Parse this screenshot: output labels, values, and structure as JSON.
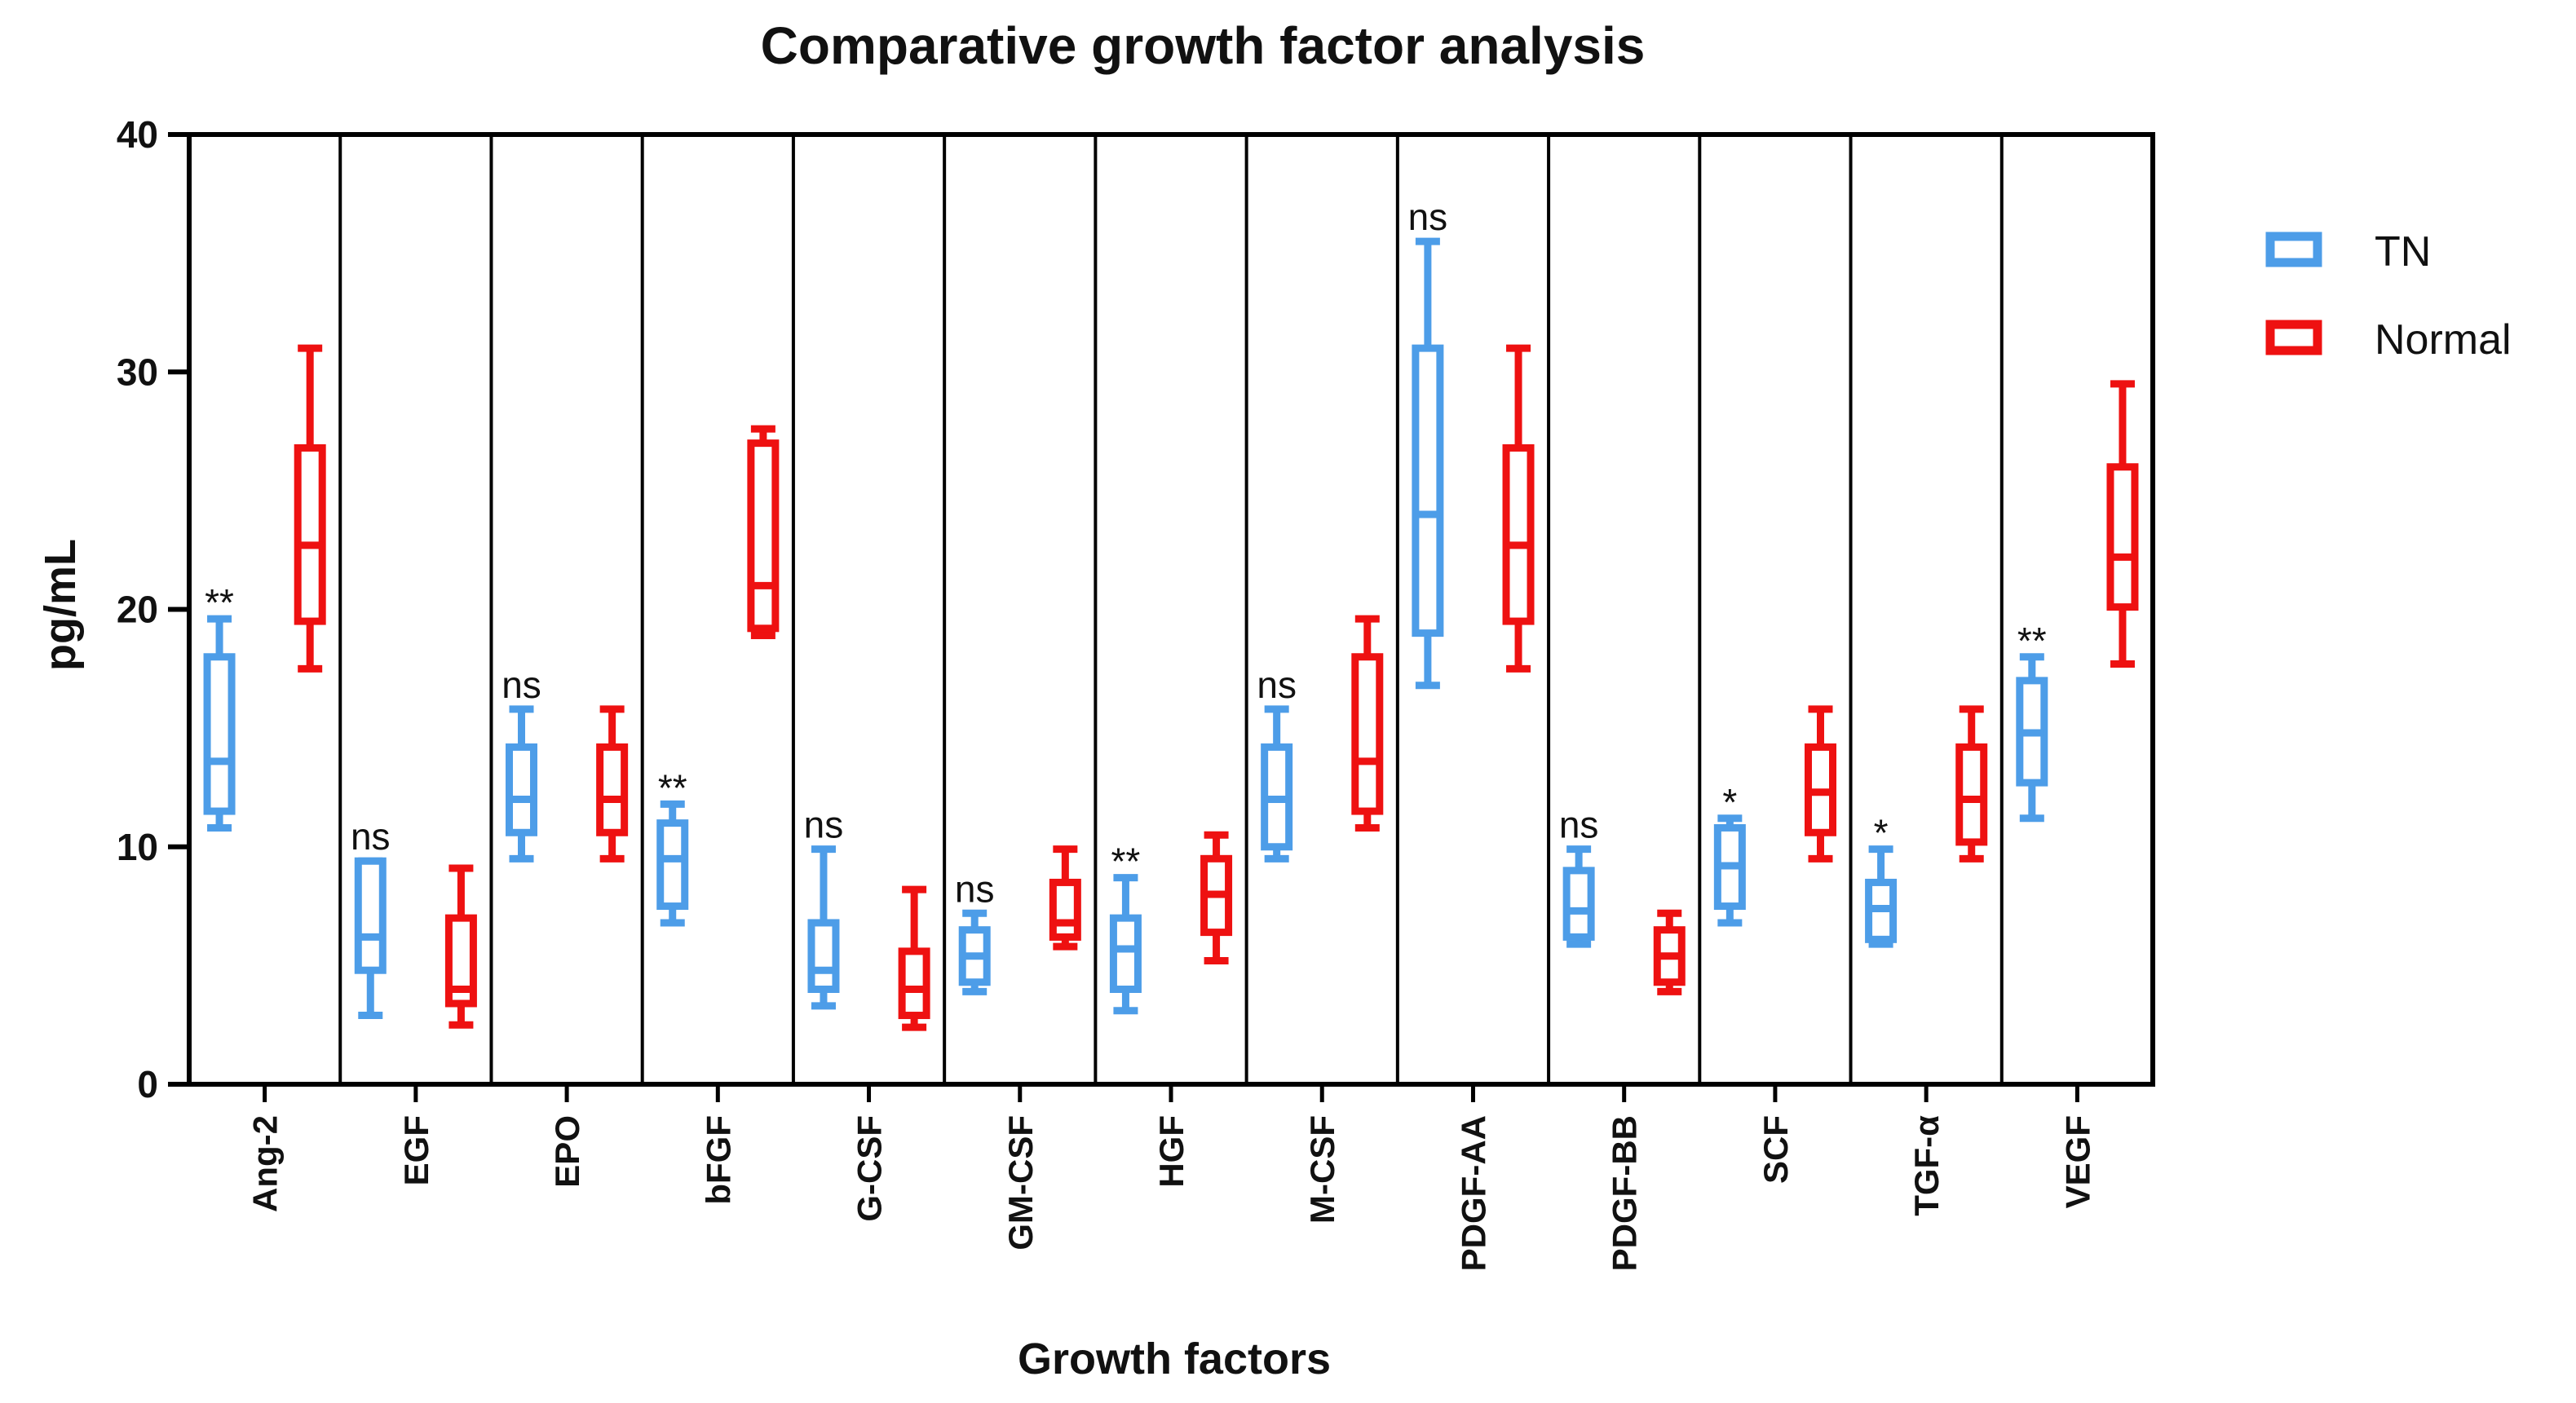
{
  "chart_data": {
    "type": "box",
    "title": "Comparative growth factor analysis",
    "xlabel": "Growth factors",
    "ylabel": "pg/mL",
    "ylim": [
      0,
      40
    ],
    "yticks": [
      0,
      10,
      20,
      30,
      40
    ],
    "categories": [
      "Ang-2",
      "EGF",
      "EPO",
      "bFGF",
      "G-CSF",
      "GM-CSF",
      "HGF",
      "M-CSF",
      "PDGF-AA",
      "PDGF-BB",
      "SCF",
      "TGF-α",
      "VEGF"
    ],
    "significance": [
      "**",
      "ns",
      "ns",
      "**",
      "ns",
      "ns",
      "**",
      "ns",
      "ns",
      "ns",
      "*",
      "*",
      "**"
    ],
    "legend_position": "right",
    "series": [
      {
        "name": "TN",
        "color": "#4d9de8",
        "boxes": [
          {
            "min": 10.8,
            "q1": 11.5,
            "median": 13.6,
            "q3": 18.0,
            "max": 19.6
          },
          {
            "min": 2.9,
            "q1": 4.8,
            "median": 6.2,
            "q3": 9.4,
            "max": 9.4
          },
          {
            "min": 9.5,
            "q1": 10.6,
            "median": 12.0,
            "q3": 14.2,
            "max": 15.8
          },
          {
            "min": 6.8,
            "q1": 7.5,
            "median": 9.5,
            "q3": 11.0,
            "max": 11.8
          },
          {
            "min": 3.3,
            "q1": 4.0,
            "median": 4.8,
            "q3": 6.8,
            "max": 9.9
          },
          {
            "min": 3.9,
            "q1": 4.3,
            "median": 5.4,
            "q3": 6.5,
            "max": 7.2
          },
          {
            "min": 3.1,
            "q1": 4.0,
            "median": 5.7,
            "q3": 7.0,
            "max": 8.7
          },
          {
            "min": 9.5,
            "q1": 10.0,
            "median": 12.0,
            "q3": 14.2,
            "max": 15.8
          },
          {
            "min": 16.8,
            "q1": 19.0,
            "median": 24.0,
            "q3": 31.0,
            "max": 35.5
          },
          {
            "min": 5.9,
            "q1": 6.2,
            "median": 7.3,
            "q3": 9.0,
            "max": 9.9
          },
          {
            "min": 6.8,
            "q1": 7.5,
            "median": 9.2,
            "q3": 10.8,
            "max": 11.2
          },
          {
            "min": 5.9,
            "q1": 6.1,
            "median": 7.4,
            "q3": 8.5,
            "max": 9.9
          },
          {
            "min": 11.2,
            "q1": 12.7,
            "median": 14.8,
            "q3": 17.0,
            "max": 18.0
          }
        ]
      },
      {
        "name": "Normal",
        "color": "#ee1111",
        "boxes": [
          {
            "min": 17.5,
            "q1": 19.5,
            "median": 22.7,
            "q3": 26.8,
            "max": 31.0
          },
          {
            "min": 2.5,
            "q1": 3.4,
            "median": 4.0,
            "q3": 7.0,
            "max": 9.1
          },
          {
            "min": 9.5,
            "q1": 10.6,
            "median": 12.0,
            "q3": 14.2,
            "max": 15.8
          },
          {
            "min": 18.9,
            "q1": 19.2,
            "median": 21.0,
            "q3": 27.0,
            "max": 27.6
          },
          {
            "min": 2.4,
            "q1": 2.9,
            "median": 4.0,
            "q3": 5.6,
            "max": 8.2
          },
          {
            "min": 5.8,
            "q1": 6.2,
            "median": 6.8,
            "q3": 8.5,
            "max": 9.9
          },
          {
            "min": 5.2,
            "q1": 6.4,
            "median": 8.0,
            "q3": 9.5,
            "max": 10.5
          },
          {
            "min": 10.8,
            "q1": 11.5,
            "median": 13.6,
            "q3": 18.0,
            "max": 19.6
          },
          {
            "min": 17.5,
            "q1": 19.5,
            "median": 22.7,
            "q3": 26.8,
            "max": 31.0
          },
          {
            "min": 3.9,
            "q1": 4.3,
            "median": 5.4,
            "q3": 6.5,
            "max": 7.2
          },
          {
            "min": 9.5,
            "q1": 10.6,
            "median": 12.3,
            "q3": 14.2,
            "max": 15.8
          },
          {
            "min": 9.5,
            "q1": 10.2,
            "median": 12.0,
            "q3": 14.2,
            "max": 15.8
          },
          {
            "min": 17.7,
            "q1": 20.1,
            "median": 22.2,
            "q3": 26.0,
            "max": 29.5
          }
        ]
      }
    ]
  }
}
